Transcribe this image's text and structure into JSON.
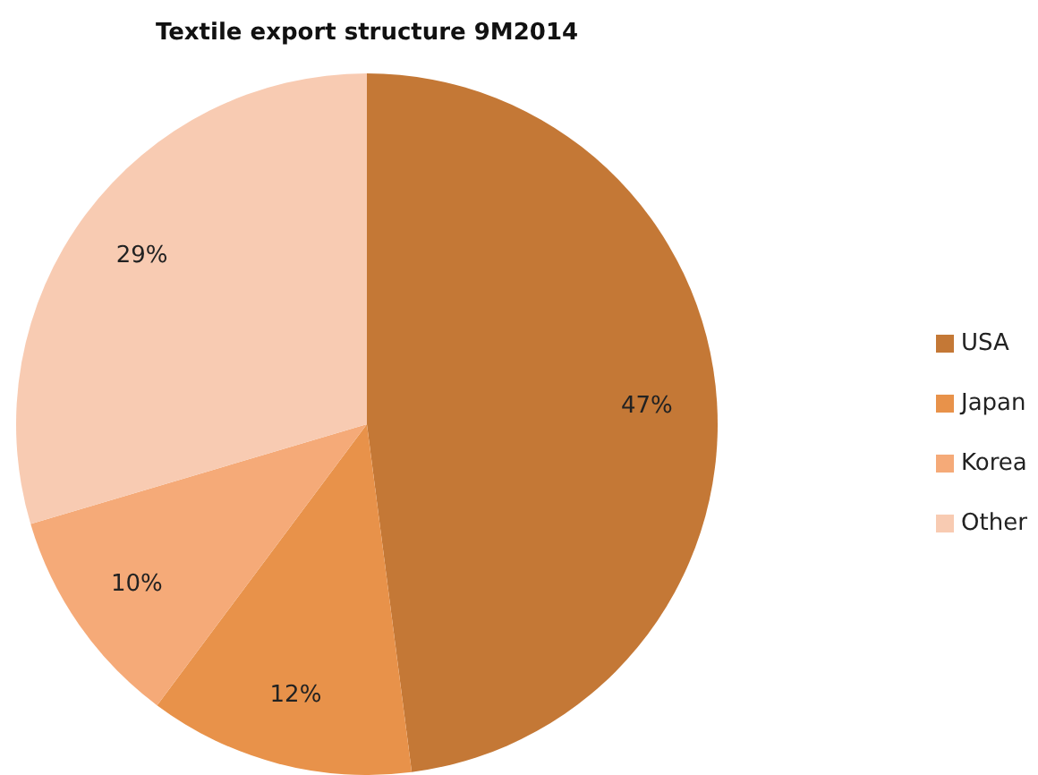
{
  "chart_data": {
    "type": "pie",
    "title": "Textile export structure 9M2014",
    "categories": [
      "USA",
      "Japan",
      "Korea",
      "Other"
    ],
    "values": [
      47,
      12,
      10,
      29
    ],
    "value_labels": [
      "47%",
      "12%",
      "10%",
      "29%"
    ],
    "colors": [
      "#c47836",
      "#e8924a",
      "#f5aa78",
      "#f8cbb2"
    ],
    "legend": "right"
  }
}
